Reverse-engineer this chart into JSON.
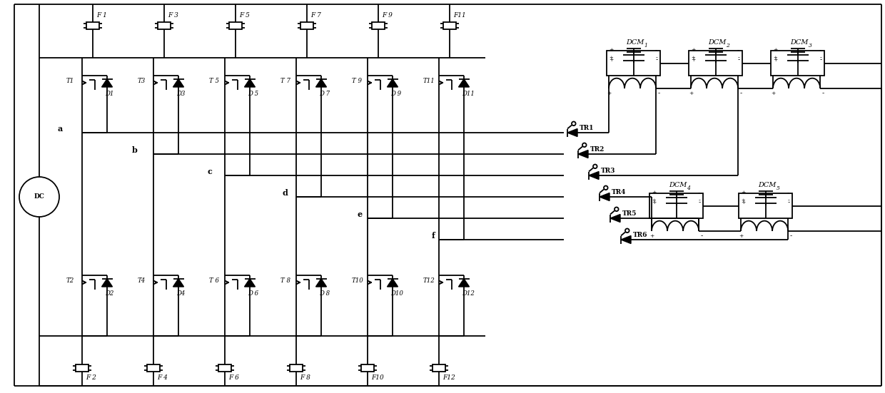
{
  "bg": "#ffffff",
  "lc": "#000000",
  "fig_w": 12.4,
  "fig_h": 5.51,
  "dpi": 100,
  "fuse_top": [
    "F 1",
    "F 3",
    "F 5",
    "F 7",
    "F 9",
    "F11"
  ],
  "fuse_bot": [
    "F 2",
    "F 4",
    "F 6",
    "F 8",
    "F10",
    "F12"
  ],
  "T_top": [
    "T1",
    "T3",
    "T 5",
    "T 7",
    "T 9",
    "T11"
  ],
  "T_bot": [
    "T2",
    "T4",
    "T 6",
    "T 8",
    "T10",
    "T12"
  ],
  "D_top": [
    "D1",
    "D3",
    "D 5",
    "D 7",
    "D 9",
    "D11"
  ],
  "D_bot": [
    "D2",
    "D4",
    "D 6",
    "D 8",
    "D10",
    "D12"
  ],
  "bus": [
    "a",
    "b",
    "c",
    "d",
    "e",
    "f"
  ],
  "TR": [
    "TR1",
    "TR2",
    "TR3",
    "TR4",
    "TR5",
    "TR6"
  ],
  "DCM_top_labels": [
    "DCM",
    "DCM",
    "DCM"
  ],
  "DCM_top_subs": [
    "1",
    "2",
    "3"
  ],
  "DCM_bot_labels": [
    "DCM",
    "DCM"
  ],
  "DCM_bot_subs": [
    "4",
    "5"
  ]
}
